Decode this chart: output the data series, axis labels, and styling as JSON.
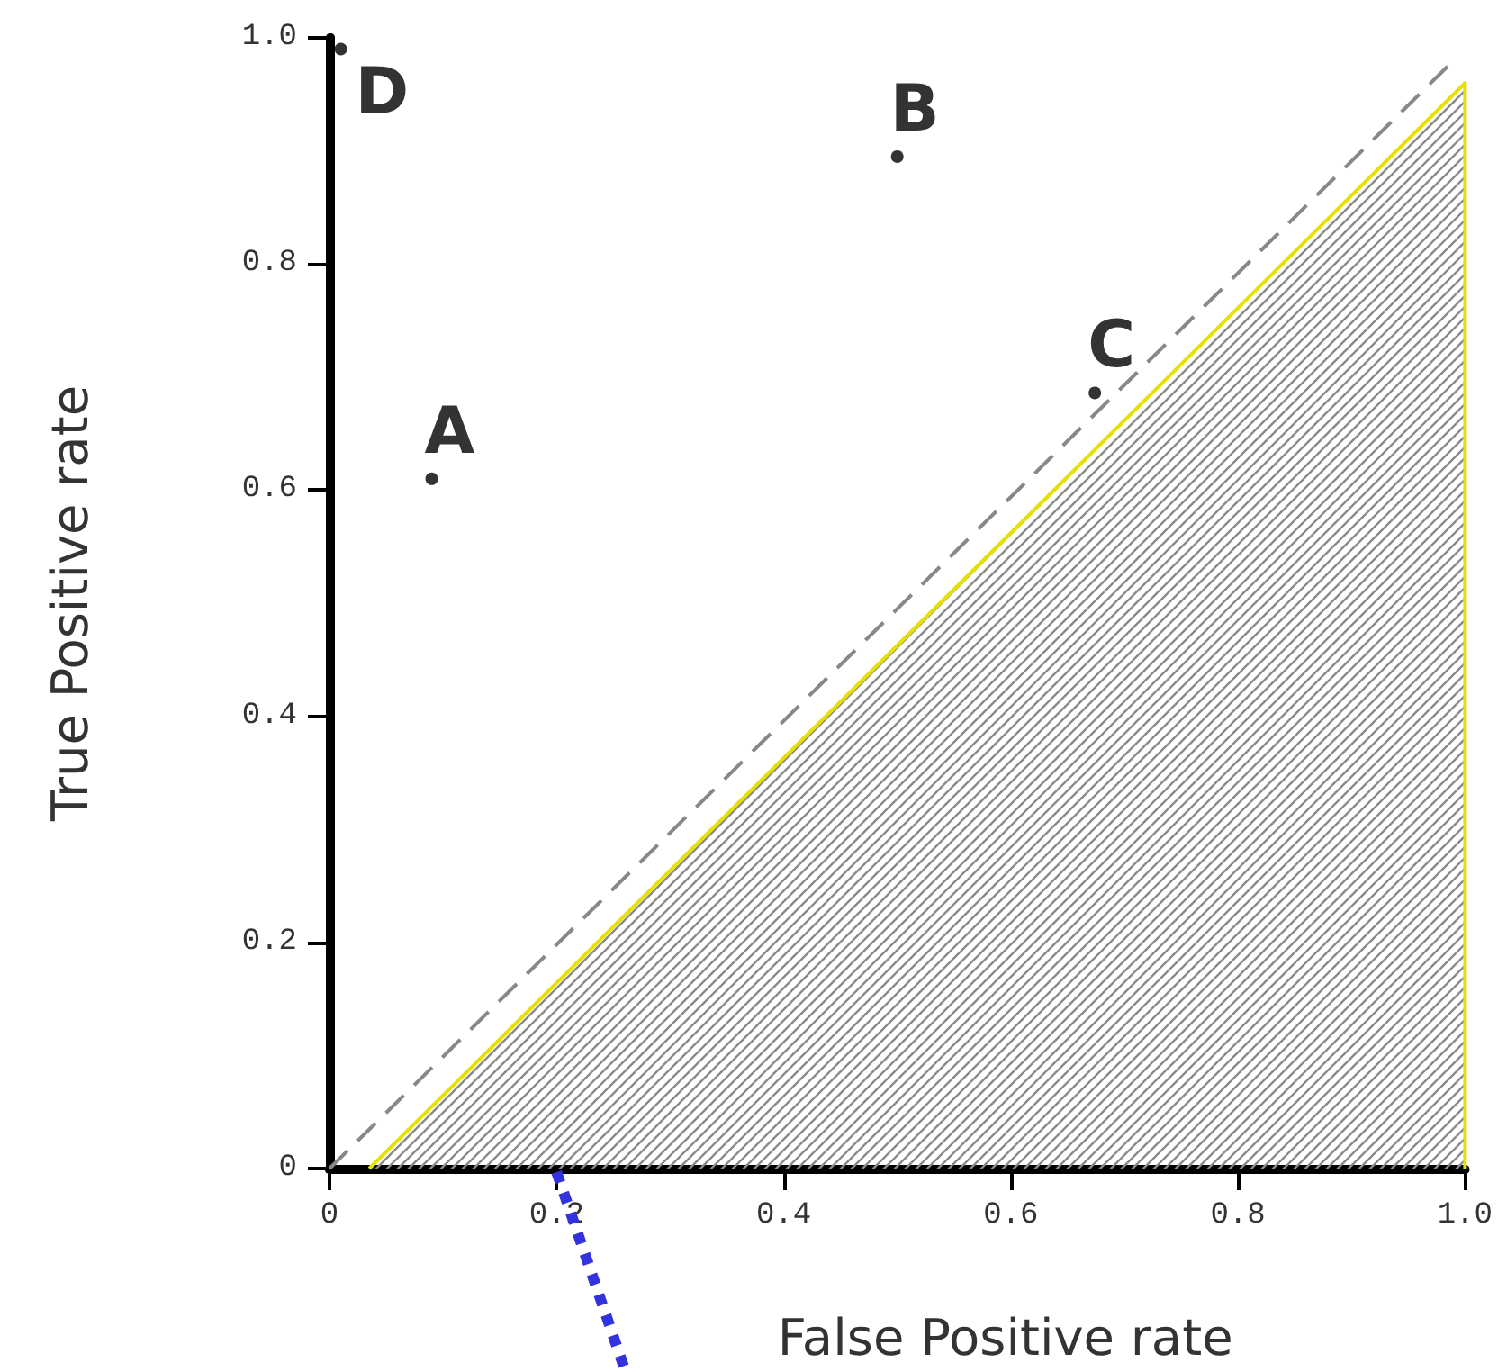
{
  "chart_data": {
    "type": "scatter",
    "xlabel": "False Positive rate",
    "ylabel": "True Positive rate",
    "xlim": [
      0,
      1
    ],
    "ylim": [
      0,
      1
    ],
    "xticks": [
      0,
      0.2,
      0.4,
      0.6,
      0.8,
      {
        "value": 1,
        "label": "1.0"
      }
    ],
    "yticks": [
      0,
      0.2,
      0.4,
      0.6,
      0.8,
      {
        "value": 1,
        "label": "1.0"
      }
    ],
    "grid": false,
    "series": [
      {
        "type": "area",
        "marker": "none",
        "color": "#e8e000",
        "x": [
          0.035,
          1,
          1
        ],
        "values": [
          0,
          0.96,
          0
        ]
      },
      {
        "type": "line",
        "marker": "none",
        "color": "#888888",
        "line_style": "dashed",
        "x": [
          0,
          0.99
        ],
        "values": [
          0,
          0.98
        ]
      },
      {
        "marker": "circle",
        "color": "#000000",
        "x": [
          0.09,
          0.5,
          0.674,
          0.01
        ],
        "values": [
          0.61,
          0.895,
          0.686,
          0.99
        ]
      }
    ],
    "annotations": [
      {
        "text": "A",
        "x": 0.09,
        "y": 0.61
      },
      {
        "text": "B",
        "x": 0.5,
        "y": 0.895
      },
      {
        "text": "C",
        "x": 0.674,
        "y": 0.686
      },
      {
        "text": "D",
        "x": 0.01,
        "y": 0.99
      }
    ]
  }
}
